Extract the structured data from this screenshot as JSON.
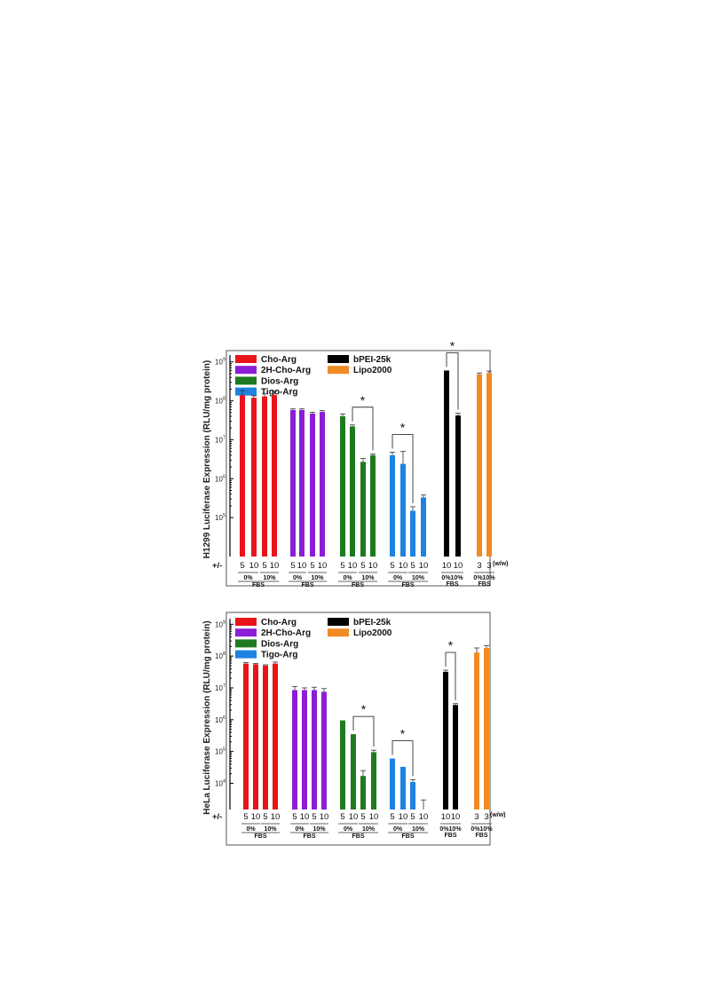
{
  "chart_data": [
    {
      "type": "bar",
      "ylabel": "H1299 Luciferase Expression (RLU/mg protein)",
      "yscale": "log",
      "ylim": [
        10000,
        1500000000
      ],
      "yticks": [
        {
          "value": 100000,
          "base": "10",
          "exp": "5"
        },
        {
          "value": 1000000,
          "base": "10",
          "exp": "6"
        },
        {
          "value": 10000000,
          "base": "10",
          "exp": "7"
        },
        {
          "value": 100000000,
          "base": "10",
          "exp": "8"
        },
        {
          "value": 1000000000,
          "base": "10",
          "exp": "9"
        }
      ],
      "legend": [
        {
          "label": "Cho-Arg",
          "color": "#e8141a"
        },
        {
          "label": "2H-Cho-Arg",
          "color": "#8b1fd6"
        },
        {
          "label": "Dios-Arg",
          "color": "#1e7a1e"
        },
        {
          "label": "Tigo-Arg",
          "color": "#1e82e0"
        },
        {
          "label": "bPEI-25k",
          "color": "#000000"
        },
        {
          "label": "Lipo2000",
          "color": "#f08a24"
        }
      ],
      "ratio_prefix": "+/-",
      "ratio_unit": "(w/w)",
      "fbs_label": "FBS",
      "groups": [
        {
          "name": "Cho-Arg",
          "color": "#e8141a",
          "ratios": [
            "5",
            "10",
            "5",
            "10"
          ],
          "fbs": [
            "0%",
            "10%"
          ],
          "values": [
            140000000,
            120000000,
            130000000,
            140000000
          ],
          "errors": [
            45000000,
            15000000,
            25000000,
            35000000
          ]
        },
        {
          "name": "2H-Cho-Arg",
          "color": "#8b1fd6",
          "ratios": [
            "5",
            "10",
            "5",
            "10"
          ],
          "fbs": [
            "0%",
            "10%"
          ],
          "values": [
            58000000,
            58000000,
            47000000,
            52000000
          ],
          "errors": [
            4000000,
            4000000,
            4000000,
            4000000
          ]
        },
        {
          "name": "Dios-Arg",
          "color": "#1e7a1e",
          "ratios": [
            "5",
            "10",
            "5",
            "10"
          ],
          "fbs": [
            "0%",
            "10%"
          ],
          "values": [
            40000000,
            22000000,
            2700000,
            4000000
          ],
          "errors": [
            6000000,
            2000000,
            600000,
            300000
          ]
        },
        {
          "name": "Tigo-Arg",
          "color": "#1e82e0",
          "ratios": [
            "5",
            "10",
            "5",
            "10"
          ],
          "fbs": [
            "0%",
            "10%"
          ],
          "values": [
            4000000,
            2400000,
            150000,
            330000
          ],
          "errors": [
            800000,
            2600000,
            40000,
            50000
          ]
        },
        {
          "name": "bPEI-25k",
          "color": "#000000",
          "ratios": [
            "10",
            "10"
          ],
          "fbs": [
            "0%",
            "10%"
          ],
          "values": [
            600000000,
            42000000
          ],
          "errors": [
            0,
            6000000
          ]
        },
        {
          "name": "Lipo2000",
          "color": "#f08a24",
          "ratios": [
            "3",
            "3"
          ],
          "fbs": [
            "0%",
            "10%"
          ],
          "values": [
            480000000,
            520000000
          ],
          "errors": [
            40000000,
            60000000
          ]
        }
      ],
      "significance": [
        {
          "group": "Dios-Arg",
          "from": 1,
          "to": 3,
          "label": "*"
        },
        {
          "group": "Tigo-Arg",
          "from": 0,
          "to": 2,
          "label": "*"
        },
        {
          "group": "bPEI-25k",
          "from": 0,
          "to": 1,
          "label": "*"
        }
      ]
    },
    {
      "type": "bar",
      "ylabel": "HeLa Luciferase Expression (RLU/mg protein)",
      "yscale": "log",
      "ylim": [
        1500,
        1500000000
      ],
      "yticks": [
        {
          "value": 10000,
          "base": "10",
          "exp": "4"
        },
        {
          "value": 100000,
          "base": "10",
          "exp": "5"
        },
        {
          "value": 1000000,
          "base": "10",
          "exp": "6"
        },
        {
          "value": 10000000,
          "base": "10",
          "exp": "7"
        },
        {
          "value": 100000000,
          "base": "10",
          "exp": "8"
        },
        {
          "value": 1000000000,
          "base": "10",
          "exp": "9"
        }
      ],
      "legend": [
        {
          "label": "Cho-Arg",
          "color": "#e8141a"
        },
        {
          "label": "2H-Cho-Arg",
          "color": "#8b1fd6"
        },
        {
          "label": "Dios-Arg",
          "color": "#1e7a1e"
        },
        {
          "label": "Tigo-Arg",
          "color": "#1e82e0"
        },
        {
          "label": "bPEI-25k",
          "color": "#000000"
        },
        {
          "label": "Lipo2000",
          "color": "#f08a24"
        }
      ],
      "ratio_prefix": "+/-",
      "ratio_unit": "(w/w)",
      "fbs_label": "FBS",
      "groups": [
        {
          "name": "Cho-Arg",
          "color": "#e8141a",
          "ratios": [
            "5",
            "10",
            "5",
            "10"
          ],
          "fbs": [
            "0%",
            "10%"
          ],
          "values": [
            58000000,
            55000000,
            50000000,
            58000000
          ],
          "errors": [
            4000000,
            3000000,
            3000000,
            7000000
          ]
        },
        {
          "name": "2H-Cho-Arg",
          "color": "#8b1fd6",
          "ratios": [
            "5",
            "10",
            "5",
            "10"
          ],
          "fbs": [
            "0%",
            "10%"
          ],
          "values": [
            8500000,
            8500000,
            8500000,
            7500000
          ],
          "errors": [
            2500000,
            1500000,
            2000000,
            2000000
          ]
        },
        {
          "name": "Dios-Arg",
          "color": "#1e7a1e",
          "ratios": [
            "5",
            "10",
            "5",
            "10"
          ],
          "fbs": [
            "0%",
            "10%"
          ],
          "values": [
            950000,
            350000,
            17000,
            95000
          ],
          "errors": [
            0,
            0,
            8000,
            15000
          ]
        },
        {
          "name": "Tigo-Arg",
          "color": "#1e82e0",
          "ratios": [
            "5",
            "10",
            "5",
            "10"
          ],
          "fbs": [
            "0%",
            "10%"
          ],
          "values": [
            60000,
            33000,
            11000,
            1200
          ],
          "errors": [
            0,
            0,
            2000,
            1800
          ]
        },
        {
          "name": "bPEI-25k",
          "color": "#000000",
          "ratios": [
            "10",
            "10"
          ],
          "fbs": [
            "0%",
            "10%"
          ],
          "values": [
            32000000,
            2900000
          ],
          "errors": [
            4000000,
            300000
          ]
        },
        {
          "name": "Lipo2000",
          "color": "#f08a24",
          "ratios": [
            "3",
            "3"
          ],
          "fbs": [
            "0%",
            "10%"
          ],
          "values": [
            130000000,
            180000000
          ],
          "errors": [
            50000000,
            30000000
          ]
        }
      ],
      "significance": [
        {
          "group": "Dios-Arg",
          "from": 1,
          "to": 3,
          "label": "*"
        },
        {
          "group": "Tigo-Arg",
          "from": 0,
          "to": 2,
          "label": "*"
        },
        {
          "group": "bPEI-25k",
          "from": 0,
          "to": 1,
          "label": "*"
        }
      ]
    }
  ]
}
